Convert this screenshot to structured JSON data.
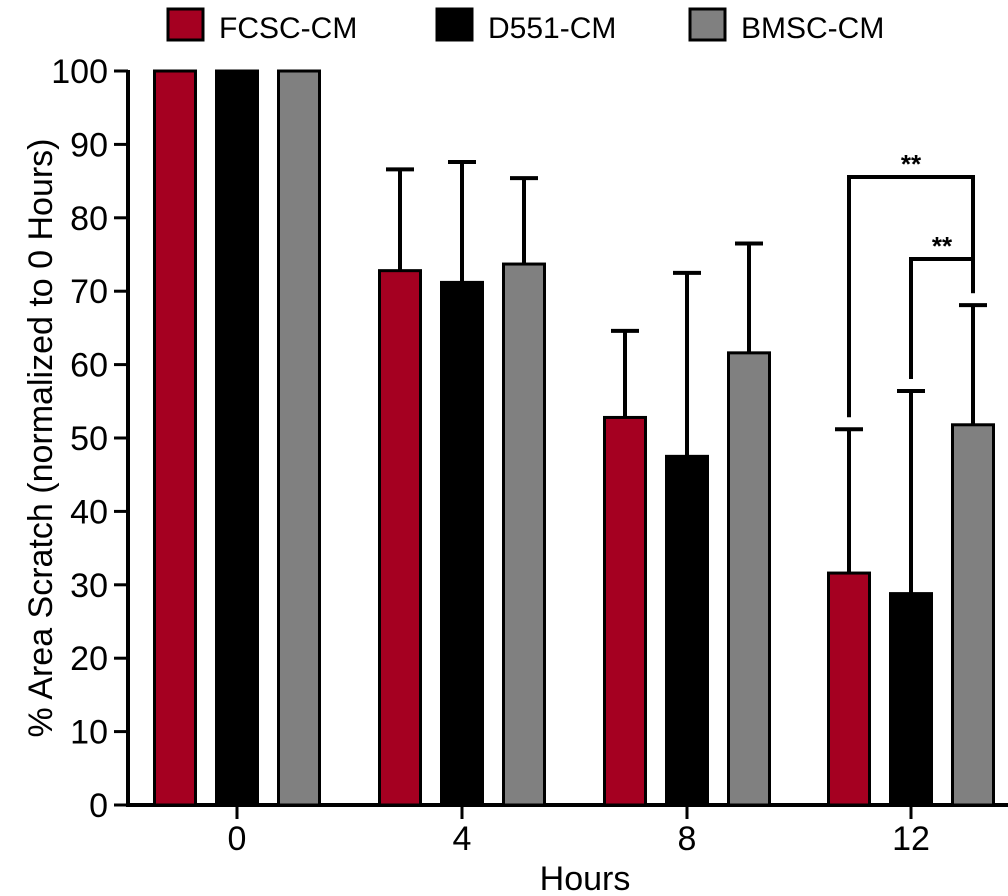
{
  "chart_data": {
    "type": "bar",
    "xlabel": "Hours",
    "ylabel": "% Area  Scratch (normalized to 0 Hours)",
    "categories": [
      "0",
      "4",
      "8",
      "12"
    ],
    "ylim": [
      0,
      100
    ],
    "yticks": [
      0,
      10,
      20,
      30,
      40,
      50,
      60,
      70,
      80,
      90,
      100
    ],
    "legend_position": "top",
    "error_bars": "upper",
    "series": [
      {
        "name": "FCSC-CM",
        "color": "#a50021",
        "values": [
          100,
          72.8,
          52.8,
          31.6
        ],
        "errors": [
          0,
          13.8,
          11.8,
          19.6
        ]
      },
      {
        "name": "D551-CM",
        "color": "#000000",
        "values": [
          100,
          71.2,
          47.5,
          28.8
        ],
        "errors": [
          0,
          16.4,
          25.0,
          27.6
        ]
      },
      {
        "name": "BMSC-CM",
        "color": "#808080",
        "values": [
          100,
          73.7,
          61.6,
          51.8
        ],
        "errors": [
          0,
          11.7,
          14.9,
          16.3
        ]
      }
    ],
    "significance": [
      {
        "category": "12",
        "from_series": 0,
        "to_series": 2,
        "label": "**"
      },
      {
        "category": "12",
        "from_series": 1,
        "to_series": 2,
        "label": "**"
      }
    ]
  }
}
